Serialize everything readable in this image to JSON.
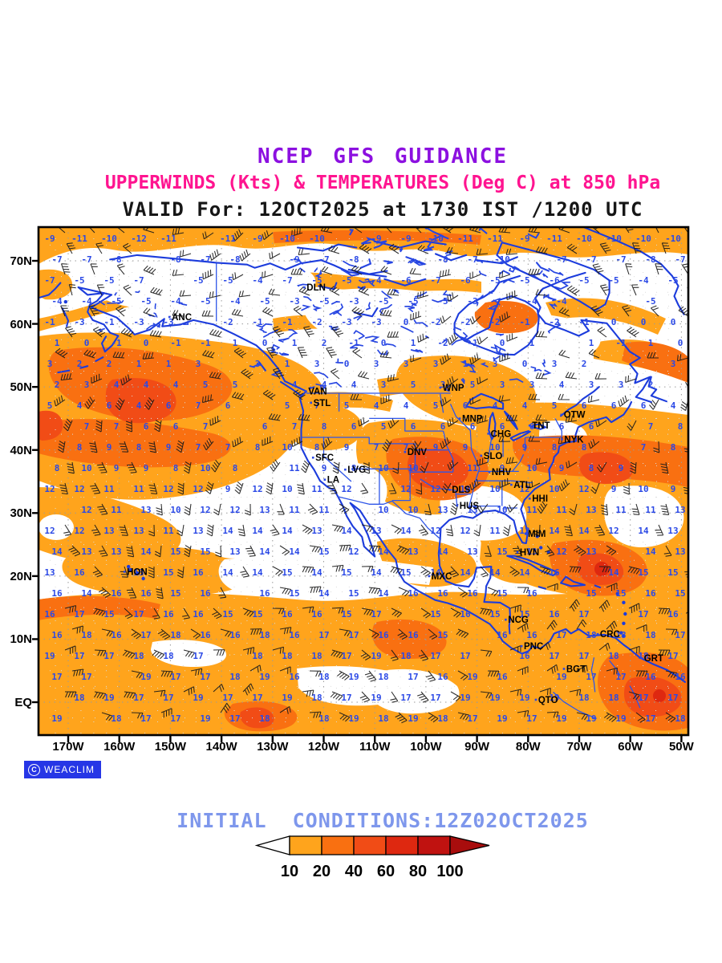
{
  "header": {
    "line1": "NCEP GFS GUIDANCE",
    "line2": "UPPERWINDS (Kts) & TEMPERATURES (Deg C) at 850 hPa",
    "line3": "VALID For: 12OCT2025 at 1730 IST /1200 UTC"
  },
  "colors": {
    "title1": "#8C10E0",
    "title2": "#FF1490",
    "shade_10_20": "#FFA41C",
    "shade_20_40": "#F97011",
    "shade_40_60": "#F14C16",
    "shade_60_80": "#DE2810",
    "shade_80_100": "#C01210",
    "coast_blue": "#1C3CDC",
    "state_blue": "#2E55E8",
    "temp_blue": "#2B49E6",
    "grid_gray": "#9a9a9a",
    "initial_text": "#7E97EC",
    "logo_bg": "#2636E6"
  },
  "map": {
    "lat_ticks": [
      {
        "label": "70N",
        "value": 70
      },
      {
        "label": "60N",
        "value": 60
      },
      {
        "label": "50N",
        "value": 50
      },
      {
        "label": "40N",
        "value": 40
      },
      {
        "label": "30N",
        "value": 30
      },
      {
        "label": "20N",
        "value": 20
      },
      {
        "label": "10N",
        "value": 10
      },
      {
        "label": "EQ",
        "value": 0
      }
    ],
    "lon_ticks": [
      {
        "label": "170W",
        "value": 170
      },
      {
        "label": "160W",
        "value": 160
      },
      {
        "label": "150W",
        "value": 150
      },
      {
        "label": "140W",
        "value": 140
      },
      {
        "label": "130W",
        "value": 130
      },
      {
        "label": "120W",
        "value": 120
      },
      {
        "label": "110W",
        "value": 110
      },
      {
        "label": "100W",
        "value": 100
      },
      {
        "label": "90W",
        "value": 90
      },
      {
        "label": "80W",
        "value": 80
      },
      {
        "label": "70W",
        "value": 70
      },
      {
        "label": "60W",
        "value": 60
      },
      {
        "label": "50W",
        "value": 50
      }
    ],
    "cities": [
      {
        "name": "ANC",
        "lat": 61.1,
        "lon": 150.2
      },
      {
        "name": "DLN",
        "lat": 65.8,
        "lon": 123.8
      },
      {
        "name": "VAN",
        "lat": 49.3,
        "lon": 123.5
      },
      {
        "name": "STL",
        "lat": 47.5,
        "lon": 122.5
      },
      {
        "name": "WNP",
        "lat": 49.9,
        "lon": 97.2
      },
      {
        "name": "MNP",
        "lat": 45.0,
        "lon": 93.4
      },
      {
        "name": "CHG",
        "lat": 42.6,
        "lon": 87.8
      },
      {
        "name": "OTW",
        "lat": 45.6,
        "lon": 73.5
      },
      {
        "name": "TNT",
        "lat": 43.9,
        "lon": 79.7
      },
      {
        "name": "NYK",
        "lat": 41.7,
        "lon": 73.4
      },
      {
        "name": "NHV",
        "lat": 36.5,
        "lon": 87.6
      },
      {
        "name": "ATL",
        "lat": 34.5,
        "lon": 83.3
      },
      {
        "name": "HHI",
        "lat": 32.3,
        "lon": 79.7
      },
      {
        "name": "DNV",
        "lat": 39.7,
        "lon": 104.1
      },
      {
        "name": "SLO",
        "lat": 39.1,
        "lon": 89.2
      },
      {
        "name": "SFC",
        "lat": 38.8,
        "lon": 122.1
      },
      {
        "name": "LVG",
        "lat": 36.9,
        "lon": 115.8
      },
      {
        "name": "LA",
        "lat": 35.3,
        "lon": 119.8
      },
      {
        "name": "DLS",
        "lat": 33.7,
        "lon": 95.4
      },
      {
        "name": "HUS",
        "lat": 31.2,
        "lon": 93.9
      },
      {
        "name": "MIM",
        "lat": 26.7,
        "lon": 80.5
      },
      {
        "name": "HVN",
        "lat": 23.8,
        "lon": 82.1
      },
      {
        "name": "HON",
        "lat": 20.7,
        "lon": 159.0
      },
      {
        "name": "MXC",
        "lat": 20.0,
        "lon": 99.4
      },
      {
        "name": "NCG",
        "lat": 13.1,
        "lon": 84.4
      },
      {
        "name": "PNC",
        "lat": 8.9,
        "lon": 81.3
      },
      {
        "name": "CRC",
        "lat": 10.8,
        "lon": 66.4
      },
      {
        "name": "GRT",
        "lat": 7.0,
        "lon": 57.8
      },
      {
        "name": "BGT",
        "lat": 5.3,
        "lon": 73.0
      },
      {
        "name": "QTO",
        "lat": 0.4,
        "lon": 78.5
      }
    ],
    "temperature_field": {
      "units": "Deg C",
      "equator_value": 18,
      "north_75N_value": -11,
      "note": "values decrease smoothly from tropics to arctic"
    },
    "wind_field": {
      "units": "Kts",
      "tropics": "easterly",
      "midlatitudes": "westerly"
    }
  },
  "logo": {
    "copyright": "C",
    "label": "WEACLIM"
  },
  "footer": {
    "initial_conditions": "INITIAL  CONDITIONS:12Z02OCT2025"
  },
  "colorbar": {
    "labels": [
      "10",
      "20",
      "40",
      "60",
      "80",
      "100"
    ],
    "segment_colors": [
      "#FFA41C",
      "#F97011",
      "#F14C16",
      "#DE2810",
      "#C01210"
    ],
    "left_arrow_color": "#FFFFFF",
    "right_arrow_color": "#A80D0D"
  },
  "chart_data": {
    "type": "map",
    "title": "NCEP GFS GUIDANCE",
    "variables": [
      "upper winds (Kts)",
      "temperatures (Deg C)"
    ],
    "level": "850 hPa",
    "valid": "12OCT2025 at 1730 IST / 1200 UTC",
    "initial_conditions": "12Z 02OCT2025",
    "lat_axis": [
      "EQ",
      "10N",
      "20N",
      "30N",
      "40N",
      "50N",
      "60N",
      "70N"
    ],
    "lon_axis": [
      "170W",
      "160W",
      "150W",
      "140W",
      "130W",
      "120W",
      "110W",
      "100W",
      "90W",
      "80W",
      "70W",
      "60W",
      "50W"
    ],
    "shading_levels": [
      10,
      20,
      40,
      60,
      80,
      100
    ],
    "temperature_summary": "about 17 to 19 C along the equator, 13 to 17 C in the subtropics, 5 to 15 C at 30-45N, -2 to 6 C at 50-60N, -5 to -12 C north of 65N"
  }
}
